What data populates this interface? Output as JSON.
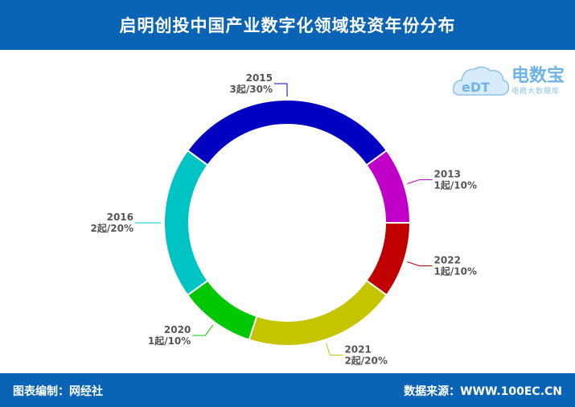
{
  "header": {
    "title": "启明创投中国产业数字化领域投资年份分布"
  },
  "footer": {
    "left": "图表编制：网经社",
    "right": "数据来源：WWW.100EC.CN"
  },
  "logo": {
    "name": "电数宝",
    "sub": "电商大数据库",
    "mark": "eDT"
  },
  "chart_data": {
    "type": "pie",
    "donut": true,
    "categories": [
      "2013",
      "2022",
      "2021",
      "2020",
      "2016",
      "2015"
    ],
    "values": [
      1,
      1,
      2,
      1,
      2,
      3
    ],
    "labels": [
      "1起/10%",
      "1起/10%",
      "2起/20%",
      "1起/10%",
      "2起/20%",
      "3起/30%"
    ],
    "colors": [
      "#c000c8",
      "#c00000",
      "#c4c400",
      "#00c800",
      "#00c4c4",
      "#0000c0"
    ]
  }
}
